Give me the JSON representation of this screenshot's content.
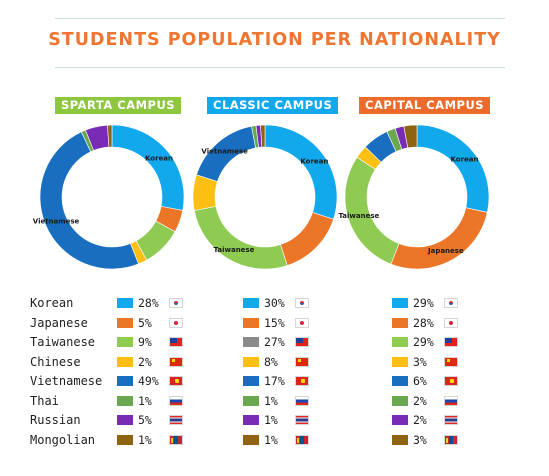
{
  "title": "STUDENTS POPULATION PER NATIONALITY",
  "colors": {
    "title": "#ee7630",
    "rule": "#c9dede",
    "Korean": "#12a9ec",
    "Japanese": "#ec7628",
    "Taiwanese": "#8fcb52",
    "Taiwanese_classic": "#8a8a8a",
    "Chinese": "#fdbf12",
    "Vietnamese": "#1a6ec0",
    "Thai": "#6aa84f",
    "Russian": "#7a2bb6",
    "Mongolian": "#8e6413"
  },
  "campuses": [
    {
      "name": "SPARTA CAMPUS",
      "color": "#8dc63f"
    },
    {
      "name": "CLASSIC CAMPUS",
      "color": "#12a9ec"
    },
    {
      "name": "CAPITAL CAMPUS",
      "color": "#ec6b2a"
    }
  ],
  "nationalities": [
    {
      "name": "Korean",
      "flag_icon": "korea-flag-icon"
    },
    {
      "name": "Japanese",
      "flag_icon": "japan-flag-icon"
    },
    {
      "name": "Taiwanese",
      "flag_icon": "taiwan-flag-icon"
    },
    {
      "name": "Chinese",
      "flag_icon": "china-flag-icon"
    },
    {
      "name": "Vietnamese",
      "flag_icon": "vietnam-flag-icon"
    },
    {
      "name": "Thai",
      "flag_icon": "russia-flag-icon"
    },
    {
      "name": "Russian",
      "flag_icon": "thailand-flag-icon"
    },
    {
      "name": "Mongolian",
      "flag_icon": "mongolia-flag-icon"
    }
  ],
  "table": [
    [
      "28%",
      "30%",
      "29%"
    ],
    [
      "5%",
      "15%",
      "28%"
    ],
    [
      "9%",
      "27%",
      "29%"
    ],
    [
      "2%",
      "8%",
      "3%"
    ],
    [
      "49%",
      "17%",
      "6%"
    ],
    [
      "1%",
      "1%",
      "2%"
    ],
    [
      "5%",
      "1%",
      "2%"
    ],
    [
      "1%",
      "1%",
      "3%"
    ]
  ],
  "chart_data": [
    {
      "type": "pie",
      "title": "SPARTA CAMPUS",
      "categories": [
        "Korean",
        "Japanese",
        "Taiwanese",
        "Chinese",
        "Vietnamese",
        "Thai",
        "Russian",
        "Mongolian"
      ],
      "values": [
        28,
        5,
        9,
        2,
        49,
        1,
        5,
        1
      ],
      "slice_labels": {
        "Korean": "Korean",
        "Vietnamese": "Vietnamese"
      }
    },
    {
      "type": "pie",
      "title": "CLASSIC CAMPUS",
      "categories": [
        "Korean",
        "Japanese",
        "Taiwanese",
        "Chinese",
        "Vietnamese",
        "Thai",
        "Russian",
        "Mongolian"
      ],
      "values": [
        30,
        15,
        27,
        8,
        17,
        1,
        1,
        1
      ],
      "slice_labels": {
        "Korean": "Korean",
        "Taiwanese": "Taiwanese",
        "Vietnamese": "Vietnamese"
      }
    },
    {
      "type": "pie",
      "title": "CAPITAL CAMPUS",
      "categories": [
        "Korean",
        "Japanese",
        "Taiwanese",
        "Chinese",
        "Vietnamese",
        "Thai",
        "Russian",
        "Mongolian"
      ],
      "values": [
        29,
        28,
        29,
        3,
        6,
        2,
        2,
        3
      ],
      "slice_labels": {
        "Korean": "Korean",
        "Japanese": "Japanese",
        "Taiwanese": "Taiwanese"
      }
    }
  ]
}
